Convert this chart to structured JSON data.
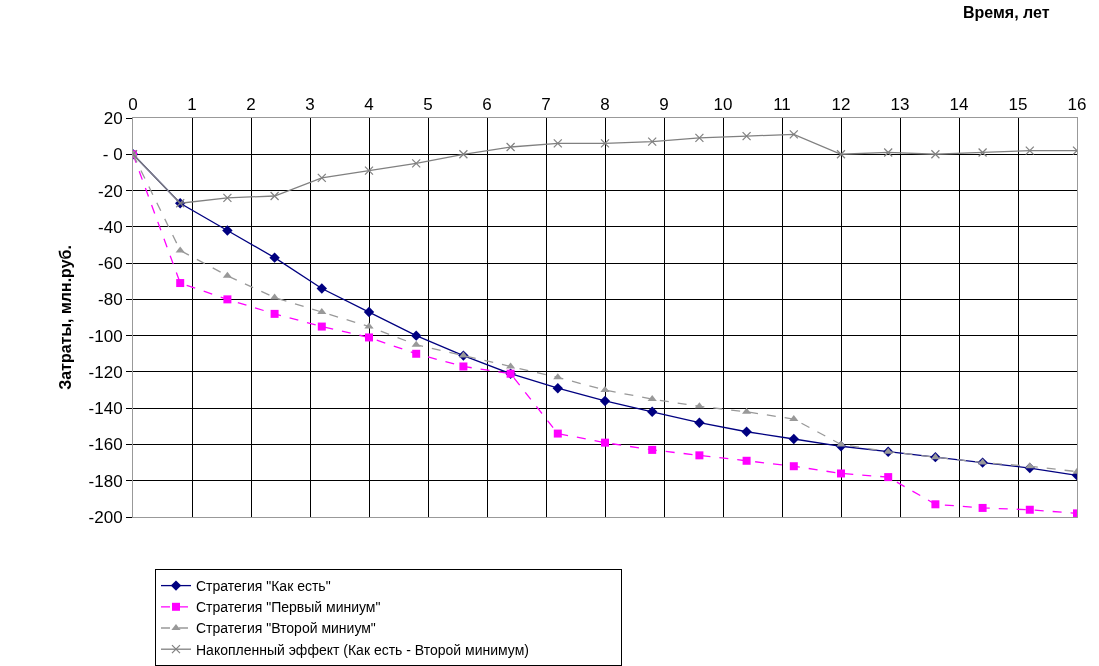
{
  "chart_data": {
    "type": "line",
    "xlabel": "Время, лет",
    "ylabel": "Затраты, млн.руб.",
    "x": [
      0,
      0.8,
      1.6,
      2.4,
      3.2,
      4.0,
      4.8,
      5.6,
      6.4,
      7.2,
      8.0,
      8.8,
      9.6,
      10.4,
      11.2,
      12.0,
      12.8,
      13.6,
      14.4,
      15.2,
      16.0
    ],
    "series": [
      {
        "name": "Стратегия \"Как есть\"",
        "color": "#000080",
        "marker": "diamond",
        "line_style": "solid",
        "values": [
          0,
          -27,
          -42,
          -57,
          -74,
          -87,
          -100,
          -111,
          -121,
          -129,
          -136,
          -142,
          -148,
          -153,
          -157,
          -161,
          -164,
          -167,
          -170,
          -173,
          -177
        ]
      },
      {
        "name": "Стратегия \"Первый миниум\"",
        "color": "#ff00ff",
        "marker": "square",
        "line_style": "dashed",
        "values": [
          0,
          -71,
          -80,
          -88,
          -95,
          -101,
          -110,
          -117,
          -121,
          -154,
          -159,
          -163,
          -166,
          -169,
          -172,
          -176,
          -178,
          -193,
          -195,
          -196,
          -198
        ]
      },
      {
        "name": "Стратегия \"Второй миниум\"",
        "color": "#999999",
        "marker": "triangle",
        "line_style": "dashed",
        "values": [
          0,
          -53,
          -67,
          -79,
          -87,
          -95,
          -105,
          -111,
          -117,
          -123,
          -130,
          -135,
          -139,
          -142,
          -146,
          -160,
          -164,
          -167,
          -170,
          -172,
          -175
        ]
      },
      {
        "name": "Накопленный эффект (Как есть - Второй минимум)",
        "color": "#808080",
        "marker": "cross",
        "line_style": "solid",
        "values": [
          0,
          -27,
          -24,
          -23,
          -13,
          -9,
          -5,
          0,
          4,
          6,
          6,
          7,
          9,
          10,
          11,
          0,
          1,
          0,
          1,
          2,
          2
        ]
      }
    ],
    "xlim": [
      0,
      16
    ],
    "xticks": [
      0,
      1,
      2,
      3,
      4,
      5,
      6,
      7,
      8,
      9,
      10,
      11,
      12,
      13,
      14,
      15,
      16
    ],
    "ylim": [
      -200,
      20
    ],
    "yticks": [
      20,
      {
        "value": 0,
        "label": "- 0"
      },
      -20,
      -40,
      -60,
      -80,
      -100,
      -120,
      -140,
      -160,
      -180,
      -200
    ],
    "grid": true,
    "legend": "bottom"
  }
}
